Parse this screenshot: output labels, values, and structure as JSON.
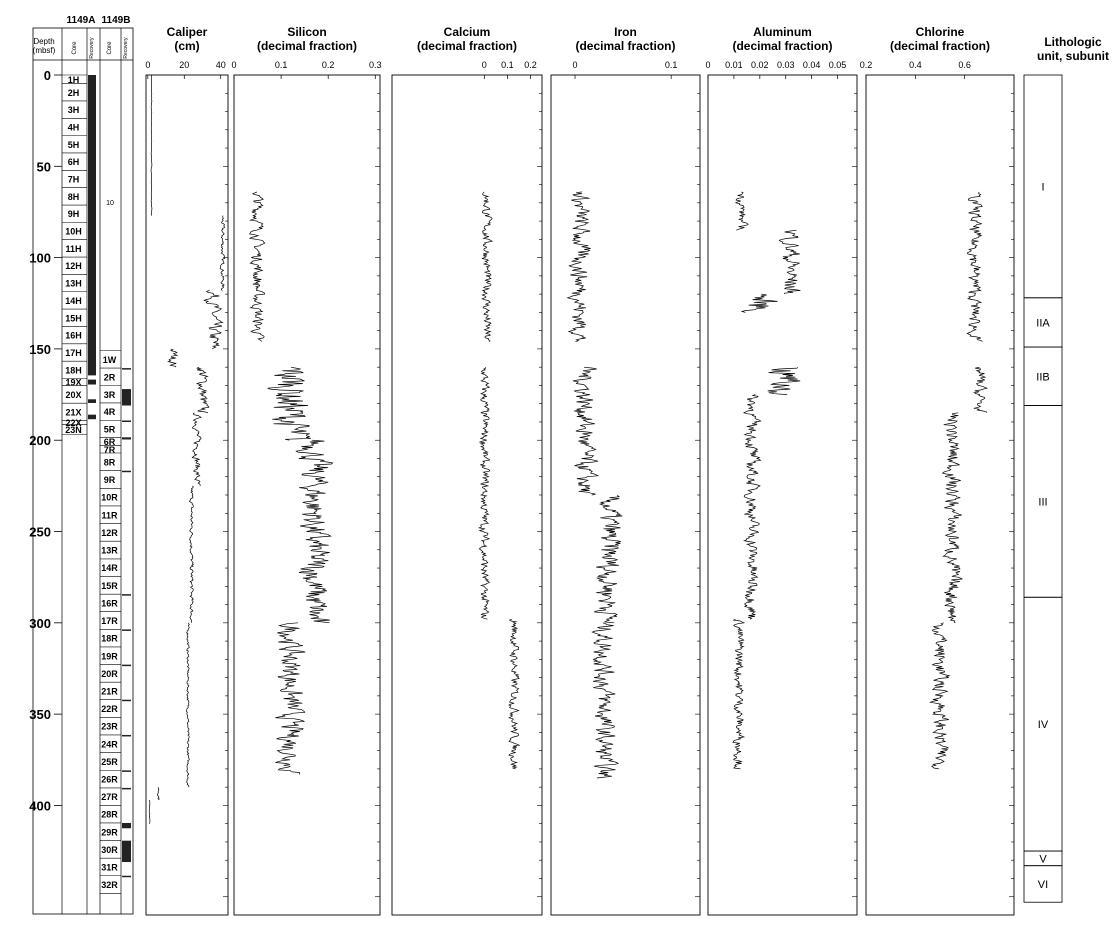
{
  "depth_axis": {
    "label_line1": "Depth",
    "label_line2": "(mbsf)",
    "range": [
      0,
      460
    ],
    "ticks": [
      "0",
      "50",
      "100",
      "150",
      "200",
      "250",
      "300",
      "350",
      "400"
    ]
  },
  "cores": {
    "hole_a": {
      "name": "1149A",
      "core_label": "Core",
      "recovery_label": "Recovery",
      "items": [
        {
          "label": "1H",
          "top": 0,
          "bottom": 4.7
        },
        {
          "label": "2H",
          "top": 4.7,
          "bottom": 14.2
        },
        {
          "label": "3H",
          "top": 14.2,
          "bottom": 23.7
        },
        {
          "label": "4H",
          "top": 23.7,
          "bottom": 33.2
        },
        {
          "label": "5H",
          "top": 33.2,
          "bottom": 42.7
        },
        {
          "label": "6H",
          "top": 42.7,
          "bottom": 52.2
        },
        {
          "label": "7H",
          "top": 52.2,
          "bottom": 61.7
        },
        {
          "label": "8H",
          "top": 61.7,
          "bottom": 71.2
        },
        {
          "label": "9H",
          "top": 71.2,
          "bottom": 80.7
        },
        {
          "label": "10H",
          "top": 80.7,
          "bottom": 90.2
        },
        {
          "label": "11H",
          "top": 90.2,
          "bottom": 99.7
        },
        {
          "label": "12H",
          "top": 99.7,
          "bottom": 109.2
        },
        {
          "label": "13H",
          "top": 109.2,
          "bottom": 118.7
        },
        {
          "label": "14H",
          "top": 118.7,
          "bottom": 128.2
        },
        {
          "label": "15H",
          "top": 128.2,
          "bottom": 137.7
        },
        {
          "label": "16H",
          "top": 137.7,
          "bottom": 147.2
        },
        {
          "label": "17H",
          "top": 147.2,
          "bottom": 156.7
        },
        {
          "label": "18H",
          "top": 156.7,
          "bottom": 166.2
        },
        {
          "label": "19X",
          "top": 166.2,
          "bottom": 170.0
        },
        {
          "label": "20X",
          "top": 170.0,
          "bottom": 179.7
        },
        {
          "label": "21X",
          "top": 179.7,
          "bottom": 189.3
        },
        {
          "label": "22X",
          "top": 189.3,
          "bottom": 191.5
        },
        {
          "label": "23N",
          "top": 191.5,
          "bottom": 197.0
        }
      ],
      "recovery": [
        [
          0,
          164.5
        ],
        [
          166.8,
          169.5
        ],
        [
          177.6,
          179.6
        ],
        [
          186.0,
          188.5
        ]
      ]
    },
    "hole_b": {
      "name": "1149B",
      "core_label": "Core",
      "recovery_label": "Recovery",
      "note": "10",
      "items": [
        {
          "label": "1W",
          "top": 151.0,
          "bottom": 160.5
        },
        {
          "label": "2R",
          "top": 160.5,
          "bottom": 170.1
        },
        {
          "label": "3R",
          "top": 170.1,
          "bottom": 179.6
        },
        {
          "label": "4R",
          "top": 179.6,
          "bottom": 189.2
        },
        {
          "label": "5R",
          "top": 189.2,
          "bottom": 198.4
        },
        {
          "label": "6R",
          "top": 198.4,
          "bottom": 202.9
        },
        {
          "label": "7R",
          "top": 202.9,
          "bottom": 207.0
        },
        {
          "label": "8R",
          "top": 207.0,
          "bottom": 216.7
        },
        {
          "label": "9R",
          "top": 216.7,
          "bottom": 226.4
        },
        {
          "label": "10R",
          "top": 226.4,
          "bottom": 236.0
        },
        {
          "label": "11R",
          "top": 236.0,
          "bottom": 245.7
        },
        {
          "label": "12R",
          "top": 245.7,
          "bottom": 255.3
        },
        {
          "label": "13R",
          "top": 255.3,
          "bottom": 265.0
        },
        {
          "label": "14R",
          "top": 265.0,
          "bottom": 274.6
        },
        {
          "label": "15R",
          "top": 274.6,
          "bottom": 284.3
        },
        {
          "label": "16R",
          "top": 284.3,
          "bottom": 293.9
        },
        {
          "label": "17R",
          "top": 293.9,
          "bottom": 303.6
        },
        {
          "label": "18R",
          "top": 303.6,
          "bottom": 313.2
        },
        {
          "label": "19R",
          "top": 313.2,
          "bottom": 322.9
        },
        {
          "label": "20R",
          "top": 322.9,
          "bottom": 332.5
        },
        {
          "label": "21R",
          "top": 332.5,
          "bottom": 342.1
        },
        {
          "label": "22R",
          "top": 342.1,
          "bottom": 351.8
        },
        {
          "label": "23R",
          "top": 351.8,
          "bottom": 361.4
        },
        {
          "label": "24R",
          "top": 361.4,
          "bottom": 371.1
        },
        {
          "label": "25R",
          "top": 371.1,
          "bottom": 380.8
        },
        {
          "label": "26R",
          "top": 380.8,
          "bottom": 390.4
        },
        {
          "label": "27R",
          "top": 390.4,
          "bottom": 400.0
        },
        {
          "label": "28R",
          "top": 400.0,
          "bottom": 409.6
        },
        {
          "label": "29R",
          "top": 409.6,
          "bottom": 419.3
        },
        {
          "label": "30R",
          "top": 419.3,
          "bottom": 428.9
        },
        {
          "label": "31R",
          "top": 428.9,
          "bottom": 438.5
        },
        {
          "label": "32R",
          "top": 438.5,
          "bottom": 448.2
        }
      ],
      "recovery": [
        [
          160.5,
          161.3
        ],
        [
          172.0,
          181.0
        ],
        [
          189.2,
          190.0
        ],
        [
          198.4,
          199.6
        ],
        [
          216.7,
          217.4
        ],
        [
          284.3,
          285.1
        ],
        [
          303.6,
          304.4
        ],
        [
          322.9,
          323.7
        ],
        [
          342.1,
          342.9
        ],
        [
          361.4,
          362.1
        ],
        [
          380.8,
          381.5
        ],
        [
          390.4,
          391.2
        ],
        [
          409.6,
          412.5
        ],
        [
          419.3,
          431.0
        ],
        [
          438.5,
          439.3
        ]
      ]
    }
  },
  "chart_data": [
    {
      "type": "line",
      "key": "caliper",
      "title_line1": "Caliper",
      "title_line2": "(cm)",
      "ticks": [
        0,
        20,
        40
      ],
      "tick_labels": [
        "0",
        "20",
        "40"
      ],
      "xlim": [
        -1,
        44
      ],
      "segments": [
        {
          "from": 0,
          "to": 75,
          "base": 2,
          "amp": 0.3
        },
        {
          "from": 75,
          "to": 77,
          "base": 2,
          "amp": 0.2
        },
        {
          "from": 77,
          "to": 78,
          "base": 41,
          "amp": 0.5
        },
        {
          "from": 78,
          "to": 118,
          "base": 41,
          "amp": 1.5
        },
        {
          "from": 118,
          "to": 150,
          "base": 36,
          "amp": 6
        },
        {
          "from": 150,
          "to": 160,
          "base": 14,
          "amp": 4
        },
        {
          "from": 160,
          "to": 185,
          "base": 30,
          "amp": 5
        },
        {
          "from": 185,
          "to": 225,
          "base": 27,
          "amp": 3
        },
        {
          "from": 225,
          "to": 300,
          "base": 24,
          "amp": 1.5
        },
        {
          "from": 300,
          "to": 390,
          "base": 22,
          "amp": 1
        },
        {
          "from": 390,
          "to": 397,
          "base": 6,
          "amp": 1
        },
        {
          "from": 397,
          "to": 410,
          "base": 1,
          "amp": 0.3
        }
      ]
    },
    {
      "type": "line",
      "key": "silicon",
      "title_line1": "Silicon",
      "title_line2": "(decimal fraction)",
      "ticks": [
        0,
        0.1,
        0.2,
        0.3
      ],
      "tick_labels": [
        "0",
        "0.1",
        "0.2",
        "0.3"
      ],
      "xlim": [
        0,
        0.31
      ],
      "segments": [
        {
          "from": 64,
          "to": 146,
          "base": 0.05,
          "amp": 0.02
        },
        {
          "from": 160,
          "to": 200,
          "base": 0.12,
          "amp": 0.07
        },
        {
          "from": 200,
          "to": 300,
          "base": 0.17,
          "amp": 0.05
        },
        {
          "from": 300,
          "to": 383,
          "base": 0.12,
          "amp": 0.04
        }
      ]
    },
    {
      "type": "line",
      "key": "calcium",
      "title_line1": "Calcium",
      "title_line2": "(decimal fraction)",
      "ticks": [
        0,
        0.1,
        0.2
      ],
      "tick_labels": [
        "0",
        "0.1",
        "0.2"
      ],
      "xlim": [
        -0.4,
        0.25
      ],
      "segments": [
        {
          "from": 64,
          "to": 146,
          "base": 0.01,
          "amp": 0.03
        },
        {
          "from": 160,
          "to": 298,
          "base": 0.0,
          "amp": 0.03
        },
        {
          "from": 298,
          "to": 380,
          "base": 0.13,
          "amp": 0.03
        }
      ]
    },
    {
      "type": "line",
      "key": "iron",
      "title_line1": "Iron",
      "title_line2": "(decimal fraction)",
      "ticks": [
        0,
        0.1
      ],
      "tick_labels": [
        "0",
        "0.1"
      ],
      "xlim": [
        -0.025,
        0.13
      ],
      "segments": [
        {
          "from": 64,
          "to": 146,
          "base": 0.005,
          "amp": 0.015
        },
        {
          "from": 160,
          "to": 230,
          "base": 0.01,
          "amp": 0.017
        },
        {
          "from": 230,
          "to": 300,
          "base": 0.035,
          "amp": 0.02
        },
        {
          "from": 300,
          "to": 385,
          "base": 0.03,
          "amp": 0.017
        }
      ]
    },
    {
      "type": "line",
      "key": "aluminum",
      "title_line1": "Aluminum",
      "title_line2": "(decimal fraction)",
      "ticks": [
        0,
        0.01,
        0.02,
        0.03,
        0.04,
        0.05
      ],
      "tick_labels": [
        "0",
        "0.01",
        "0.02",
        "0.03",
        "0.04",
        "0.05"
      ],
      "xlim": [
        0,
        0.0575
      ],
      "segments": [
        {
          "from": 64,
          "to": 85,
          "base": 0.013,
          "amp": 0.003
        },
        {
          "from": 85,
          "to": 120,
          "base": 0.032,
          "amp": 0.006
        },
        {
          "from": 120,
          "to": 130,
          "base": 0.02,
          "amp": 0.01
        },
        {
          "from": 160,
          "to": 175,
          "base": 0.03,
          "amp": 0.012
        },
        {
          "from": 175,
          "to": 298,
          "base": 0.017,
          "amp": 0.004
        },
        {
          "from": 298,
          "to": 380,
          "base": 0.012,
          "amp": 0.003
        }
      ]
    },
    {
      "type": "line",
      "key": "chlorine",
      "title_line1": "Chlorine",
      "title_line2": "(decimal fraction)",
      "ticks": [
        0.2,
        0.4,
        0.6
      ],
      "tick_labels": [
        "0.2",
        "0.4",
        "0.6"
      ],
      "xlim": [
        0.2,
        0.8
      ],
      "segments": [
        {
          "from": 64,
          "to": 146,
          "base": 0.64,
          "amp": 0.04
        },
        {
          "from": 160,
          "to": 185,
          "base": 0.66,
          "amp": 0.04
        },
        {
          "from": 185,
          "to": 300,
          "base": 0.55,
          "amp": 0.05
        },
        {
          "from": 300,
          "to": 380,
          "base": 0.5,
          "amp": 0.05
        }
      ]
    }
  ],
  "lithology": {
    "title_line1": "Lithologic",
    "title_line2": "unit, subunit",
    "units": [
      {
        "label": "I",
        "top": 0,
        "bottom": 122
      },
      {
        "label": "IIA",
        "top": 122,
        "bottom": 149
      },
      {
        "label": "IIB",
        "top": 149,
        "bottom": 181
      },
      {
        "label": "III",
        "top": 181,
        "bottom": 286
      },
      {
        "label": "IV",
        "top": 286,
        "bottom": 425
      },
      {
        "label": "V",
        "top": 425,
        "bottom": 433
      },
      {
        "label": "VI",
        "top": 433,
        "bottom": 453
      }
    ]
  },
  "colors": {
    "line": "#000000",
    "recovery": "#222222",
    "background": "#ffffff"
  }
}
